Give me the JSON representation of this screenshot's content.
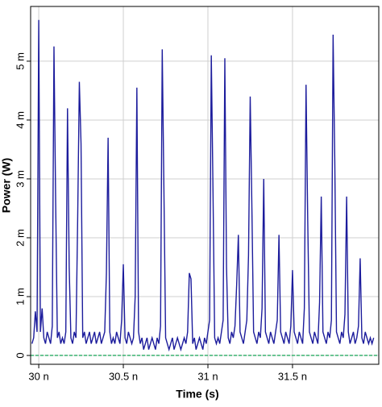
{
  "chart_data": {
    "type": "line",
    "x_label": "Time (s)",
    "y_label": "Power (W)",
    "color": "#1c1c9c",
    "zero_line_color": "#3cb371",
    "grid": true,
    "xlim": [
      2.9952e-08,
      3.201e-08
    ],
    "ylim": [
      -0.00015,
      0.00593
    ],
    "xticks": [
      {
        "value": 3e-08,
        "label": "30 n"
      },
      {
        "value": 3.05e-08,
        "label": "30.5 n"
      },
      {
        "value": 3.1e-08,
        "label": "31 n"
      },
      {
        "value": 3.15e-08,
        "label": "31.5 n"
      }
    ],
    "yticks": [
      0,
      {
        "value": 0.001,
        "label": "1 m"
      },
      {
        "value": 0.002,
        "label": "2 m"
      },
      {
        "value": 0.003,
        "label": "3 m"
      },
      {
        "value": 0.004,
        "label": "4 m"
      },
      {
        "value": 0.005,
        "label": "5 m"
      }
    ],
    "x": [
      2.996e-08,
      2.997e-08,
      2.998e-08,
      2.999e-08,
      3e-08,
      3.001e-08,
      3.002e-08,
      3.003e-08,
      3.004e-08,
      3.005e-08,
      3.006e-08,
      3.007e-08,
      3.008e-08,
      3.009e-08,
      3.01e-08,
      3.011e-08,
      3.012e-08,
      3.013e-08,
      3.014e-08,
      3.015e-08,
      3.016e-08,
      3.017e-08,
      3.018e-08,
      3.019e-08,
      3.02e-08,
      3.021e-08,
      3.022e-08,
      3.023e-08,
      3.024e-08,
      3.025e-08,
      3.026e-08,
      3.027e-08,
      3.028e-08,
      3.029e-08,
      3.03e-08,
      3.031e-08,
      3.032e-08,
      3.033e-08,
      3.034e-08,
      3.035e-08,
      3.036e-08,
      3.037e-08,
      3.038e-08,
      3.039e-08,
      3.04e-08,
      3.041e-08,
      3.042e-08,
      3.043e-08,
      3.044e-08,
      3.045e-08,
      3.046e-08,
      3.047e-08,
      3.048e-08,
      3.049e-08,
      3.05e-08,
      3.051e-08,
      3.052e-08,
      3.053e-08,
      3.054e-08,
      3.055e-08,
      3.056e-08,
      3.057e-08,
      3.058e-08,
      3.059e-08,
      3.06e-08,
      3.061e-08,
      3.062e-08,
      3.063e-08,
      3.064e-08,
      3.065e-08,
      3.066e-08,
      3.067e-08,
      3.068e-08,
      3.069e-08,
      3.07e-08,
      3.071e-08,
      3.072e-08,
      3.073e-08,
      3.074e-08,
      3.075e-08,
      3.076e-08,
      3.077e-08,
      3.078e-08,
      3.079e-08,
      3.08e-08,
      3.081e-08,
      3.082e-08,
      3.083e-08,
      3.084e-08,
      3.085e-08,
      3.086e-08,
      3.087e-08,
      3.088e-08,
      3.089e-08,
      3.09e-08,
      3.091e-08,
      3.092e-08,
      3.093e-08,
      3.094e-08,
      3.095e-08,
      3.096e-08,
      3.097e-08,
      3.098e-08,
      3.099e-08,
      3.1e-08,
      3.101e-08,
      3.102e-08,
      3.103e-08,
      3.104e-08,
      3.105e-08,
      3.106e-08,
      3.107e-08,
      3.108e-08,
      3.109e-08,
      3.11e-08,
      3.111e-08,
      3.112e-08,
      3.113e-08,
      3.114e-08,
      3.115e-08,
      3.116e-08,
      3.117e-08,
      3.118e-08,
      3.119e-08,
      3.12e-08,
      3.121e-08,
      3.122e-08,
      3.123e-08,
      3.124e-08,
      3.125e-08,
      3.126e-08,
      3.127e-08,
      3.128e-08,
      3.129e-08,
      3.13e-08,
      3.131e-08,
      3.132e-08,
      3.133e-08,
      3.134e-08,
      3.135e-08,
      3.136e-08,
      3.137e-08,
      3.138e-08,
      3.139e-08,
      3.14e-08,
      3.141e-08,
      3.142e-08,
      3.143e-08,
      3.144e-08,
      3.145e-08,
      3.146e-08,
      3.147e-08,
      3.148e-08,
      3.149e-08,
      3.15e-08,
      3.151e-08,
      3.152e-08,
      3.153e-08,
      3.154e-08,
      3.155e-08,
      3.156e-08,
      3.157e-08,
      3.158e-08,
      3.159e-08,
      3.16e-08,
      3.161e-08,
      3.162e-08,
      3.163e-08,
      3.164e-08,
      3.165e-08,
      3.166e-08,
      3.167e-08,
      3.168e-08,
      3.169e-08,
      3.17e-08,
      3.171e-08,
      3.172e-08,
      3.173e-08,
      3.174e-08,
      3.175e-08,
      3.176e-08,
      3.177e-08,
      3.178e-08,
      3.179e-08,
      3.18e-08,
      3.181e-08,
      3.182e-08,
      3.183e-08,
      3.184e-08,
      3.185e-08,
      3.186e-08,
      3.187e-08,
      3.188e-08,
      3.189e-08,
      3.19e-08,
      3.191e-08,
      3.192e-08,
      3.193e-08,
      3.194e-08,
      3.195e-08,
      3.196e-08,
      3.197e-08,
      3.198e-08
    ],
    "values": [
      0.0002,
      0.0003,
      0.00075,
      0.0004,
      0.0057,
      0.0004,
      0.0008,
      0.0003,
      0.0002,
      0.0004,
      0.0003,
      0.0002,
      0.0005,
      0.00525,
      0.0026,
      0.0003,
      0.0004,
      0.0002,
      0.0003,
      0.0002,
      0.0004,
      0.0042,
      0.0015,
      0.0003,
      0.0002,
      0.0004,
      0.0003,
      0.0023,
      0.00465,
      0.0036,
      0.0003,
      0.0004,
      0.0002,
      0.0003,
      0.0004,
      0.0002,
      0.0003,
      0.0004,
      0.0002,
      0.0003,
      0.0004,
      0.0002,
      0.0003,
      0.0004,
      0.0014,
      0.0037,
      0.0004,
      0.0002,
      0.0003,
      0.0002,
      0.0004,
      0.0003,
      0.0002,
      0.0006,
      0.00155,
      0.0003,
      0.0002,
      0.0004,
      0.0003,
      0.0002,
      0.0003,
      0.001,
      0.00455,
      0.0004,
      0.0002,
      0.0003,
      0.0001,
      0.0002,
      0.0003,
      0.0001,
      0.0002,
      0.0003,
      0.0002,
      0.0001,
      0.0003,
      0.0002,
      0.0005,
      0.0052,
      0.0028,
      0.0003,
      0.0002,
      0.0001,
      0.0002,
      0.0003,
      0.0001,
      0.0002,
      0.0003,
      0.0002,
      0.0001,
      0.0002,
      0.0003,
      0.0002,
      0.0004,
      0.0014,
      0.0013,
      0.0002,
      0.0003,
      0.0001,
      0.0002,
      0.0003,
      0.0002,
      0.0001,
      0.0003,
      0.0002,
      0.0004,
      0.0006,
      0.0051,
      0.0028,
      0.0003,
      0.0002,
      0.0003,
      0.0002,
      0.0004,
      0.0006,
      0.00505,
      0.0015,
      0.0003,
      0.0002,
      0.0004,
      0.0003,
      0.0005,
      0.0012,
      0.00205,
      0.0004,
      0.0003,
      0.0002,
      0.0004,
      0.0006,
      0.0017,
      0.0044,
      0.0025,
      0.0004,
      0.0003,
      0.0002,
      0.0004,
      0.0003,
      0.0008,
      0.003,
      0.0004,
      0.0003,
      0.0002,
      0.0004,
      0.0003,
      0.0002,
      0.0004,
      0.0006,
      0.00205,
      0.0004,
      0.0003,
      0.0002,
      0.0004,
      0.0003,
      0.0002,
      0.0005,
      0.00145,
      0.0004,
      0.0003,
      0.0002,
      0.0004,
      0.0003,
      0.0002,
      0.0008,
      0.0046,
      0.0023,
      0.0004,
      0.0003,
      0.0002,
      0.0004,
      0.0003,
      0.0002,
      0.0009,
      0.0027,
      0.0004,
      0.0003,
      0.0002,
      0.0004,
      0.0003,
      0.0006,
      0.00545,
      0.0033,
      0.0004,
      0.0003,
      0.0002,
      0.0004,
      0.0003,
      0.0007,
      0.0027,
      0.0004,
      0.0002,
      0.0003,
      0.0004,
      0.0002,
      0.0003,
      0.0005,
      0.00165,
      0.0003,
      0.0002,
      0.0004,
      0.0003,
      0.0002,
      0.0003,
      0.0002,
      0.0003
    ]
  }
}
